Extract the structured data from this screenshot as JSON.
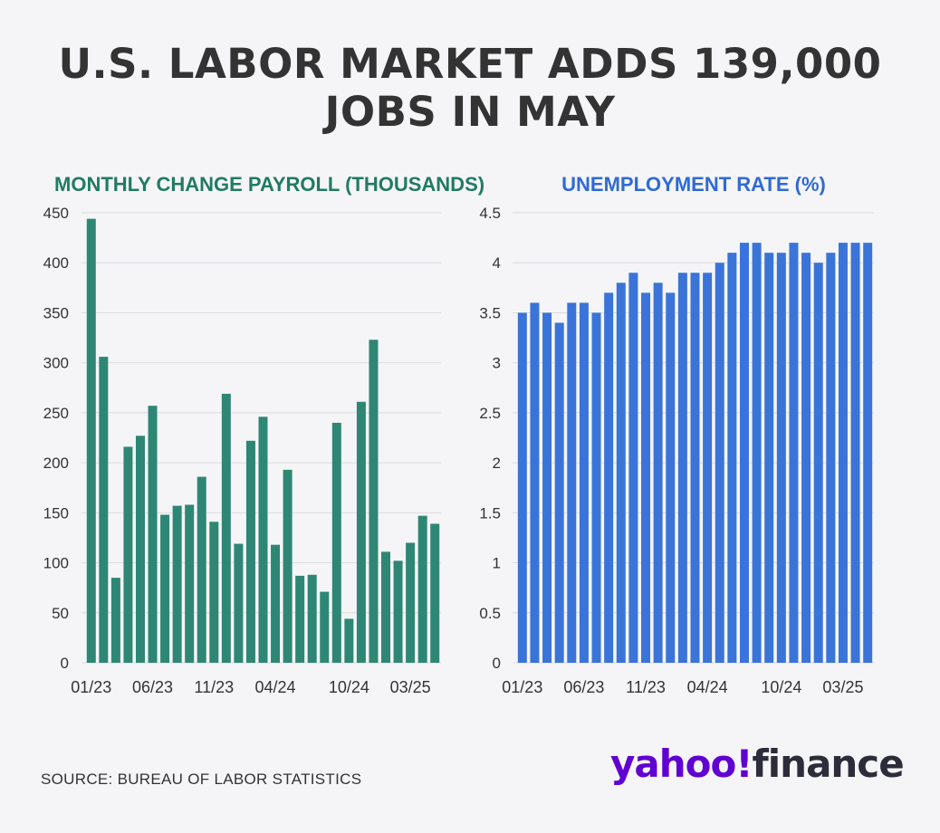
{
  "title": {
    "line1": "U.S. LABOR MARKET ADDS 139,000",
    "line2": "JOBS IN MAY"
  },
  "colors": {
    "payroll_bar": "#2e8774",
    "payroll_title": "#217a64",
    "rate_bar": "#3a74d8",
    "rate_title": "#2f6ad5",
    "axis_text": "#333333",
    "grid": "#dcdcdf"
  },
  "chart_data": [
    {
      "type": "bar",
      "title": "MONTHLY CHANGE PAYROLL (THOUSANDS)",
      "x": [
        "01/23",
        "02/23",
        "03/23",
        "04/23",
        "05/23",
        "06/23",
        "07/23",
        "08/23",
        "09/23",
        "10/23",
        "11/23",
        "12/23",
        "01/24",
        "02/24",
        "03/24",
        "04/24",
        "05/24",
        "06/24",
        "07/24",
        "08/24",
        "09/24",
        "10/24",
        "11/24",
        "12/24",
        "01/25",
        "02/25",
        "03/25",
        "04/25",
        "05/25"
      ],
      "values": [
        444,
        306,
        85,
        216,
        227,
        257,
        148,
        157,
        158,
        186,
        141,
        269,
        119,
        222,
        246,
        118,
        193,
        87,
        88,
        71,
        240,
        44,
        261,
        323,
        111,
        102,
        120,
        147,
        139
      ],
      "x_tick_labels": [
        "01/23",
        "06/23",
        "11/23",
        "04/24",
        "10/24",
        "03/25"
      ],
      "y_ticks": [
        "0",
        "50",
        "100",
        "150",
        "200",
        "250",
        "300",
        "350",
        "400",
        "450"
      ],
      "ylim": [
        0,
        450
      ],
      "grid": true
    },
    {
      "type": "bar",
      "title": "UNEMPLOYMENT RATE (%)",
      "x": [
        "01/23",
        "02/23",
        "03/23",
        "04/23",
        "05/23",
        "06/23",
        "07/23",
        "08/23",
        "09/23",
        "10/23",
        "11/23",
        "12/23",
        "01/24",
        "02/24",
        "03/24",
        "04/24",
        "05/24",
        "06/24",
        "07/24",
        "08/24",
        "09/24",
        "10/24",
        "11/24",
        "12/24",
        "01/25",
        "02/25",
        "03/25",
        "04/25",
        "05/25"
      ],
      "values": [
        3.5,
        3.6,
        3.5,
        3.4,
        3.6,
        3.6,
        3.5,
        3.7,
        3.8,
        3.9,
        3.7,
        3.8,
        3.7,
        3.9,
        3.9,
        3.9,
        4.0,
        4.1,
        4.2,
        4.2,
        4.1,
        4.1,
        4.2,
        4.1,
        4.0,
        4.1,
        4.2,
        4.2,
        4.2
      ],
      "x_tick_labels": [
        "01/23",
        "06/23",
        "11/23",
        "04/24",
        "10/24",
        "03/25"
      ],
      "y_ticks": [
        "0",
        "0.5",
        "1",
        "1.5",
        "2",
        "2.5",
        "3",
        "3.5",
        "4",
        "4.5"
      ],
      "ylim": [
        0,
        4.5
      ],
      "grid": true
    }
  ],
  "footer": {
    "source": "SOURCE: BUREAU OF LABOR STATISTICS",
    "logo_part1": "yahoo",
    "logo_bang": "!",
    "logo_part2": "finance"
  }
}
